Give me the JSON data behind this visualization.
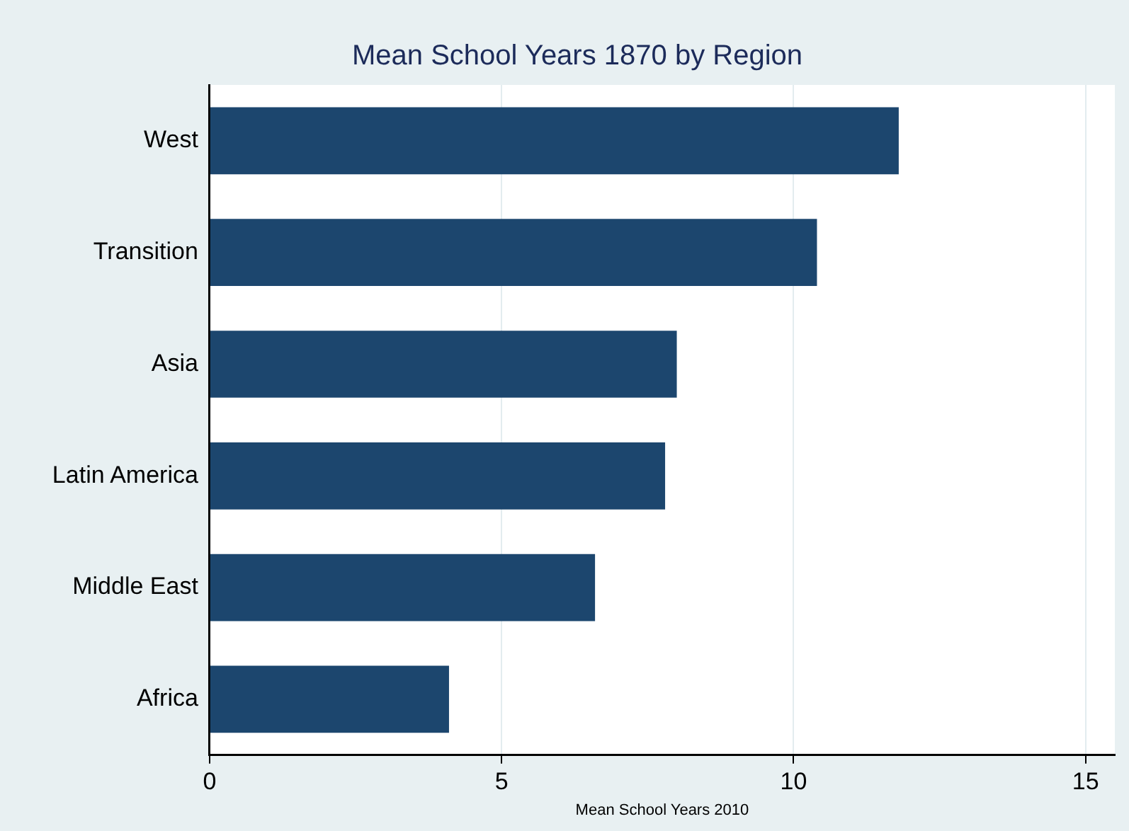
{
  "chart_data": {
    "type": "bar",
    "orientation": "horizontal",
    "title": "Mean School Years 1870 by Region",
    "xlabel": "Mean School Years 2010",
    "categories": [
      "West",
      "Transition",
      "Asia",
      "Latin America",
      "Middle East",
      "Africa"
    ],
    "values": [
      11.8,
      10.4,
      8.0,
      7.8,
      6.6,
      4.1
    ],
    "color": "#1c466e",
    "xlim": [
      0,
      15.5
    ],
    "xticks": [
      0,
      5,
      10,
      15
    ],
    "grid": "x"
  }
}
